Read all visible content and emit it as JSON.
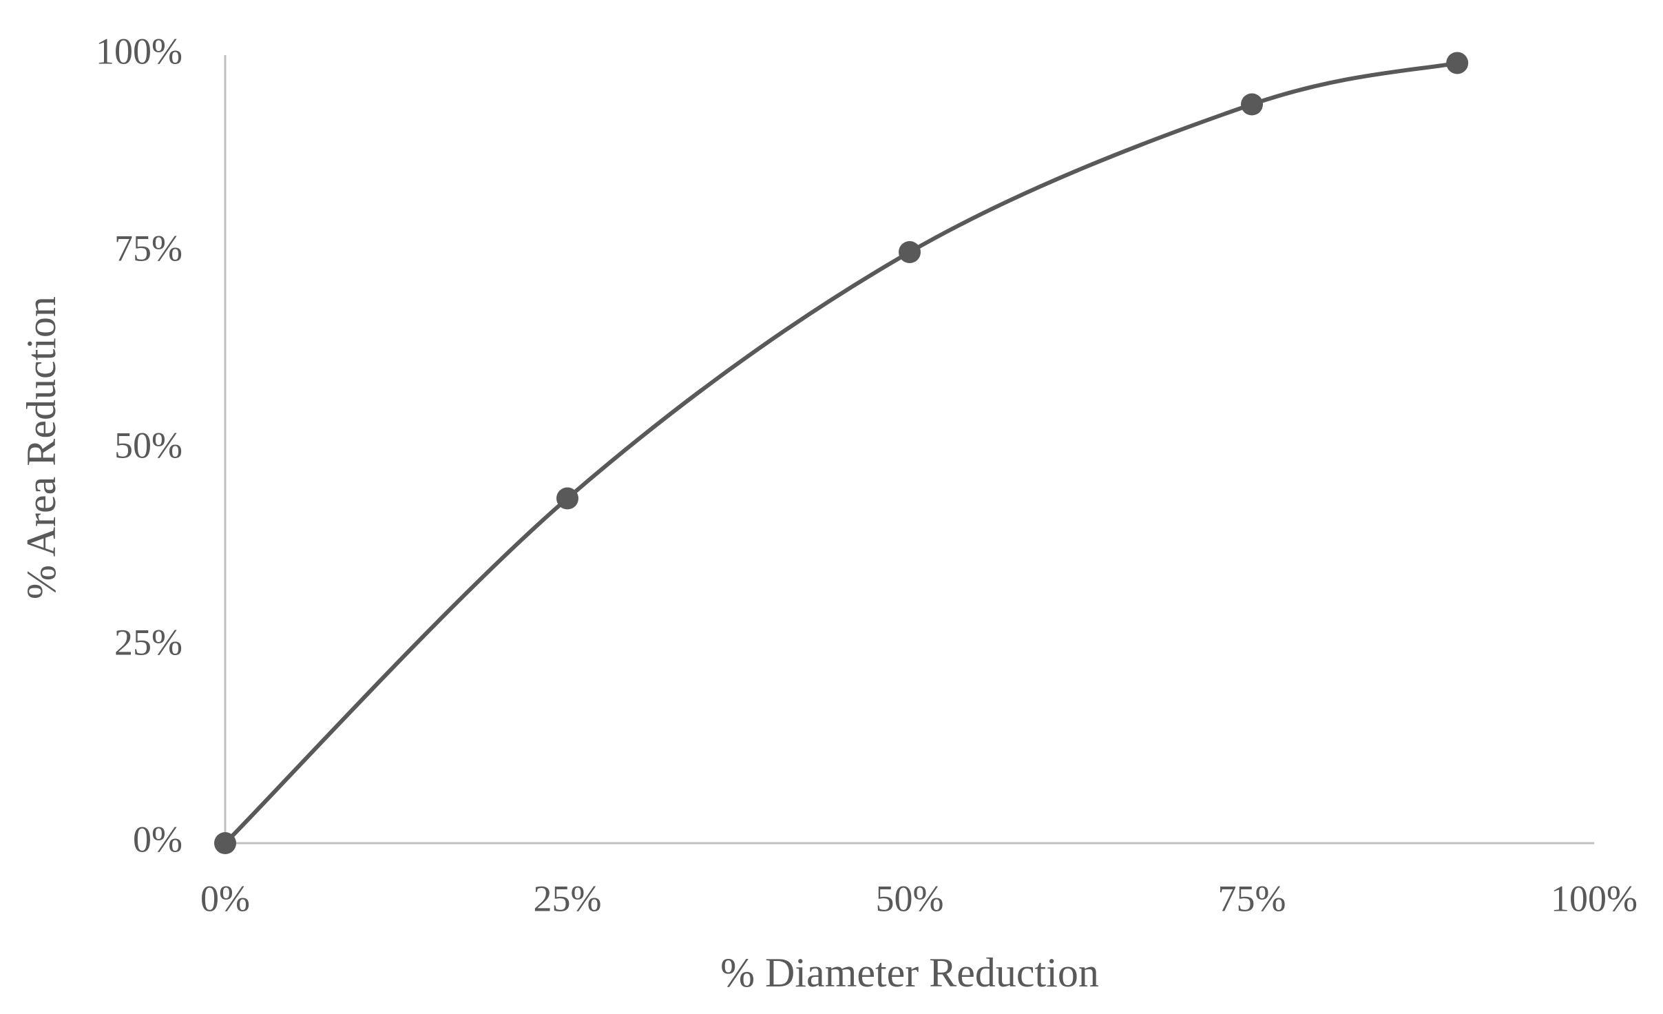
{
  "chart_data": {
    "type": "line",
    "x_label": "% Diameter Reduction",
    "y_label": "% Area Reduction",
    "x": [
      0,
      25,
      50,
      75,
      90
    ],
    "series": [
      {
        "color": "#595959",
        "values": [
          0,
          43.75,
          75,
          93.75,
          99
        ]
      }
    ],
    "xlim": [
      0,
      100
    ],
    "ylim": [
      0,
      100
    ],
    "xticks": [
      {
        "value": 0,
        "label": "0%"
      },
      {
        "value": 25,
        "label": "25%"
      },
      {
        "value": 50,
        "label": "50%"
      },
      {
        "value": 75,
        "label": "75%"
      },
      {
        "value": 100,
        "label": "100%"
      }
    ],
    "yticks": [
      {
        "value": 0,
        "label": "0%"
      },
      {
        "value": 25,
        "label": "25%"
      },
      {
        "value": 50,
        "label": "50%"
      },
      {
        "value": 75,
        "label": "75%"
      },
      {
        "value": 100,
        "label": "100%"
      }
    ],
    "smooth": true,
    "markers": true
  }
}
